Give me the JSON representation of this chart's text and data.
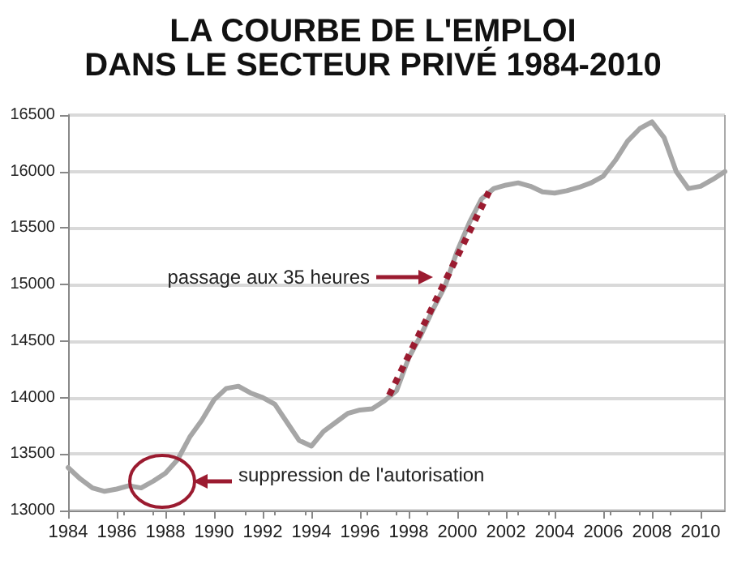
{
  "chart_data": {
    "type": "line",
    "title": "LA COURBE DE L'EMPLOI\nDANS LE SECTEUR PRIVÉ 1984-2010",
    "x": [
      1984,
      1984.5,
      1985,
      1985.5,
      1986,
      1986.5,
      1987,
      1987.5,
      1988,
      1988.5,
      1989,
      1989.5,
      1990,
      1990.5,
      1991,
      1991.5,
      1992,
      1992.5,
      1993,
      1993.5,
      1994,
      1994.5,
      1995,
      1995.5,
      1996,
      1996.5,
      1997,
      1997.5,
      1998,
      1998.5,
      1999,
      1999.5,
      2000,
      2000.5,
      2001,
      2001.5,
      2002,
      2002.5,
      2003,
      2003.5,
      2004,
      2004.5,
      2005,
      2005.5,
      2006,
      2006.5,
      2007,
      2007.5,
      2008,
      2008.5,
      2009,
      2009.5,
      2010,
      2010.5,
      2011
    ],
    "series": [
      {
        "color": "#a6a6a6",
        "values": [
          13380,
          13280,
          13200,
          13170,
          13190,
          13220,
          13200,
          13260,
          13330,
          13450,
          13650,
          13800,
          13980,
          14080,
          14100,
          14040,
          14000,
          13940,
          13780,
          13620,
          13570,
          13700,
          13780,
          13860,
          13890,
          13900,
          13970,
          14060,
          14350,
          14550,
          14780,
          14990,
          15300,
          15550,
          15760,
          15850,
          15880,
          15900,
          15870,
          15820,
          15810,
          15830,
          15860,
          15900,
          15960,
          16100,
          16270,
          16380,
          16440,
          16300,
          16000,
          15850,
          15870,
          15930,
          16000
        ]
      },
      {
        "color": "#9b1b30",
        "line_style": "dotted",
        "x": [
          1997.2,
          2001.3
        ],
        "values": [
          14020,
          15820
        ]
      }
    ],
    "xlim": [
      1984,
      2011
    ],
    "xticks": [
      1984,
      1986,
      1988,
      1990,
      1992,
      1994,
      1996,
      1998,
      2000,
      2002,
      2004,
      2006,
      2008,
      2010
    ],
    "ylim": [
      13000,
      16500
    ],
    "yticks": [
      13000,
      13500,
      14000,
      14500,
      15000,
      15500,
      16000,
      16500
    ],
    "grid": "y",
    "marker": "none",
    "line_style": "solid",
    "annotations": [
      "passage aux 35 heures",
      "suppression de l'autorisation"
    ]
  }
}
